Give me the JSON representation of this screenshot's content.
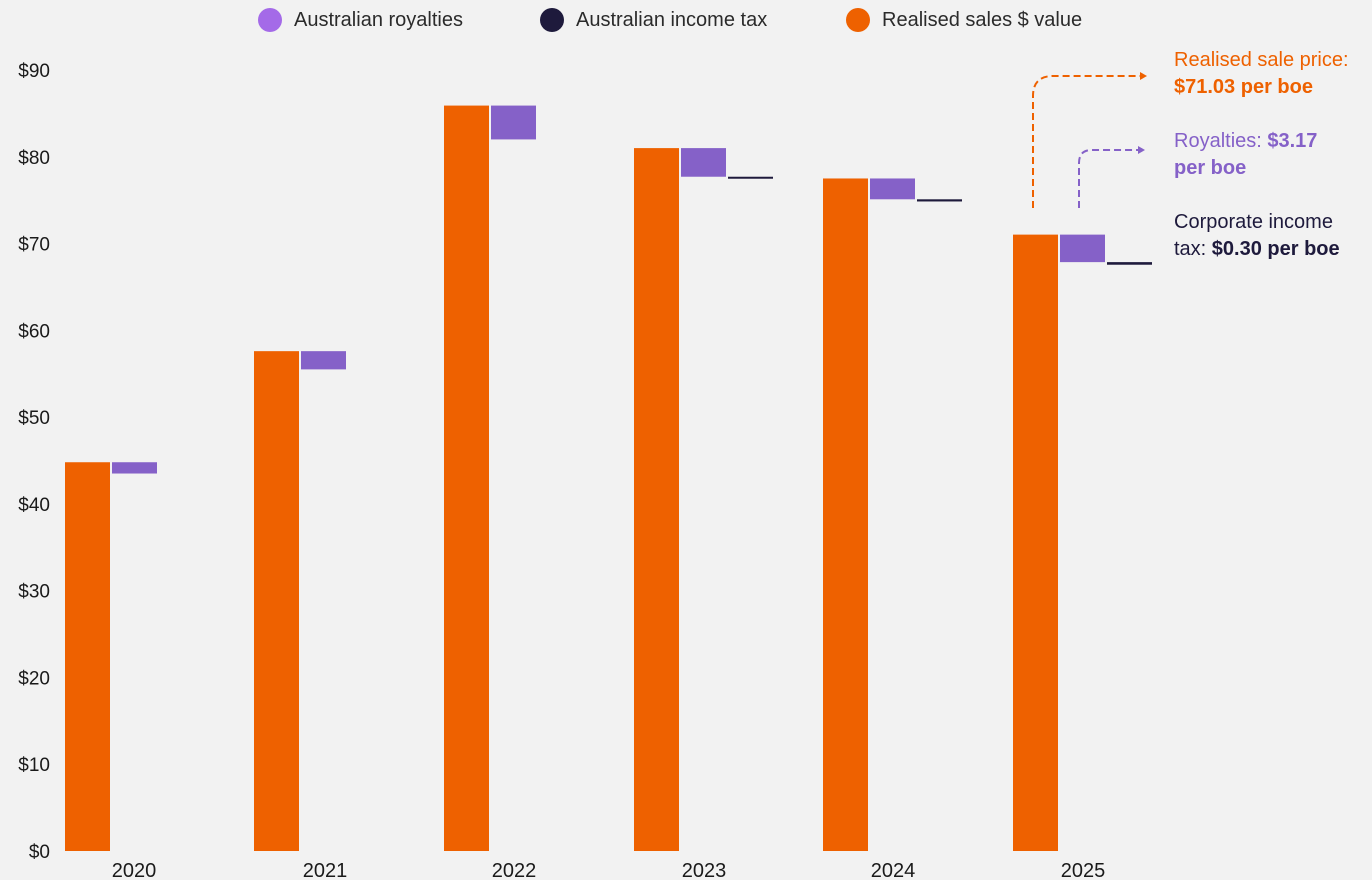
{
  "colors": {
    "royalties": "#8561c8",
    "income_tax": "#1e1a3c",
    "sales": "#ee6100",
    "background": "#f2f2f2",
    "text": "#1a1a1a"
  },
  "legend": [
    {
      "label": "Australian royalties",
      "color": "#a46ae8"
    },
    {
      "label": "Australian income tax",
      "color": "#1e1a3c"
    },
    {
      "label": "Realised sales $ value",
      "color": "#ee6100"
    }
  ],
  "annotations": {
    "sale_price_label": "Realised sale price:",
    "sale_price_value": "$71.03 per boe",
    "royalties_label": "Royalties: ",
    "royalties_value_1": "$3.17",
    "royalties_value_2": "per boe",
    "tax_label_1": "Corporate income",
    "tax_label_2": "tax: ",
    "tax_value": "$0.30 per boe"
  },
  "chart_data": {
    "type": "bar",
    "categories": [
      "2020",
      "2021",
      "2022",
      "2023",
      "2024",
      "2025"
    ],
    "series": [
      {
        "name": "Realised sales $ value",
        "values": [
          44.8,
          57.6,
          85.9,
          81.0,
          77.5,
          71.03
        ]
      },
      {
        "name": "Australian royalties",
        "values": [
          1.3,
          2.1,
          3.9,
          3.3,
          2.4,
          3.17
        ]
      },
      {
        "name": "Australian income tax",
        "values": [
          0,
          0,
          0,
          0.2,
          0.25,
          0.3
        ]
      }
    ],
    "ylim": [
      0,
      90
    ],
    "yticks": [
      "$0",
      "$10",
      "$20",
      "$30",
      "$40",
      "$50",
      "$60",
      "$70",
      "$80",
      "$90"
    ],
    "ytick_values": [
      0,
      10,
      20,
      30,
      40,
      50,
      60,
      70,
      80,
      90
    ],
    "grid": false,
    "legend_position": "top"
  }
}
